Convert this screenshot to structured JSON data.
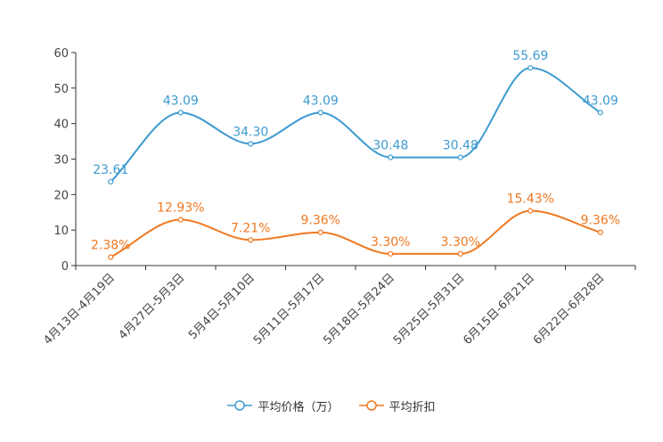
{
  "chart_data": {
    "type": "line",
    "categories": [
      "4月13日-4月19日",
      "4月27日-5月3日",
      "5月4日-5月10日",
      "5月11日-5月17日",
      "5月18日-5月24日",
      "5月25日-5月31日",
      "6月15日-6月21日",
      "6月22日-6月28日"
    ],
    "series": [
      {
        "name": "平均价格（万）",
        "values": [
          23.61,
          43.09,
          34.3,
          43.09,
          30.48,
          30.48,
          55.69,
          43.09
        ],
        "labels": [
          "23.61",
          "43.09",
          "34.30",
          "43.09",
          "30.48",
          "30.48",
          "55.69",
          "43.09"
        ],
        "color": "#3d9bd0"
      },
      {
        "name": "平均折扣",
        "values": [
          2.38,
          12.93,
          7.21,
          9.36,
          3.3,
          3.3,
          15.43,
          9.36
        ],
        "labels": [
          "2.38%",
          "12.93%",
          "7.21%",
          "9.36%",
          "3.30%",
          "3.30%",
          "15.43%",
          "9.36%"
        ],
        "color": "#f07820"
      }
    ],
    "yticks": [
      "0",
      "10",
      "20",
      "30",
      "40",
      "50",
      "60"
    ],
    "ylim": [
      0,
      60
    ],
    "title": "",
    "xlabel": "",
    "ylabel": "",
    "smooth": true,
    "legend_position": "bottom-center"
  }
}
